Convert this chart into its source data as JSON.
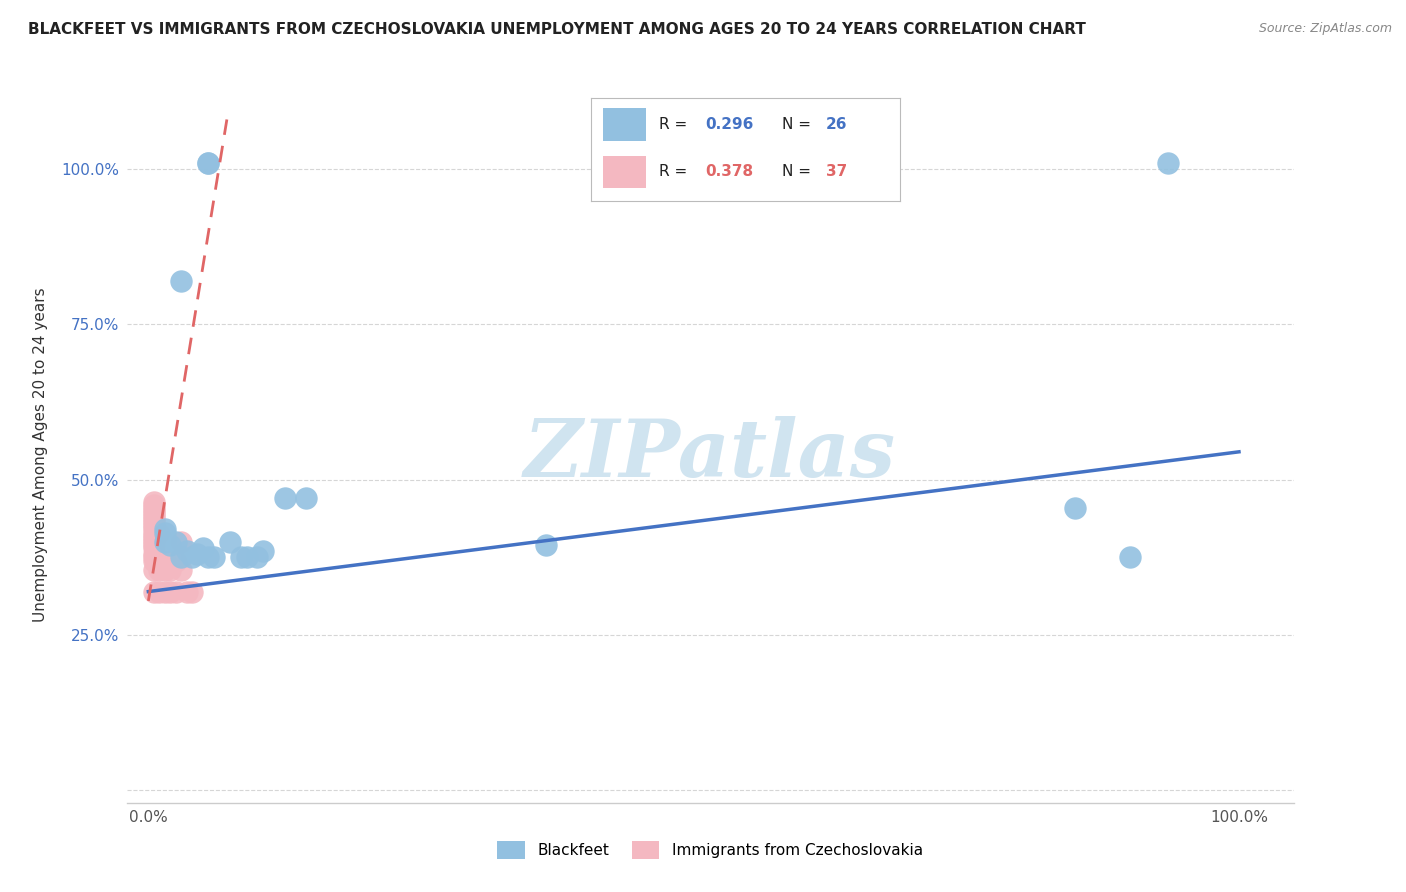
{
  "title": "BLACKFEET VS IMMIGRANTS FROM CZECHOSLOVAKIA UNEMPLOYMENT AMONG AGES 20 TO 24 YEARS CORRELATION CHART",
  "source": "Source: ZipAtlas.com",
  "ylabel": "Unemployment Among Ages 20 to 24 years",
  "blackfeet_R": 0.296,
  "blackfeet_N": 26,
  "czech_R": 0.378,
  "czech_N": 37,
  "blackfeet_color": "#92c0e0",
  "czech_color": "#f4b8c1",
  "blue_line_color": "#4472c4",
  "pink_line_color": "#e06666",
  "watermark_color": "#d0e4f0",
  "background_color": "#ffffff",
  "xlim": [
    -0.02,
    1.05
  ],
  "ylim": [
    -0.02,
    1.1
  ],
  "blackfeet_scatter": [
    [
      0.03,
      0.82
    ],
    [
      0.055,
      1.01
    ],
    [
      0.055,
      1.01
    ],
    [
      0.935,
      1.01
    ],
    [
      0.015,
      0.4
    ],
    [
      0.015,
      0.42
    ],
    [
      0.015,
      0.415
    ],
    [
      0.02,
      0.395
    ],
    [
      0.025,
      0.4
    ],
    [
      0.03,
      0.375
    ],
    [
      0.035,
      0.385
    ],
    [
      0.04,
      0.375
    ],
    [
      0.045,
      0.38
    ],
    [
      0.05,
      0.39
    ],
    [
      0.055,
      0.375
    ],
    [
      0.06,
      0.375
    ],
    [
      0.075,
      0.4
    ],
    [
      0.085,
      0.375
    ],
    [
      0.09,
      0.375
    ],
    [
      0.1,
      0.375
    ],
    [
      0.105,
      0.385
    ],
    [
      0.125,
      0.47
    ],
    [
      0.145,
      0.47
    ],
    [
      0.365,
      0.395
    ],
    [
      0.85,
      0.455
    ],
    [
      0.9,
      0.375
    ]
  ],
  "czech_scatter": [
    [
      0.005,
      0.32
    ],
    [
      0.005,
      0.355
    ],
    [
      0.005,
      0.37
    ],
    [
      0.005,
      0.375
    ],
    [
      0.005,
      0.38
    ],
    [
      0.005,
      0.39
    ],
    [
      0.005,
      0.395
    ],
    [
      0.005,
      0.4
    ],
    [
      0.005,
      0.405
    ],
    [
      0.005,
      0.41
    ],
    [
      0.005,
      0.415
    ],
    [
      0.005,
      0.42
    ],
    [
      0.005,
      0.425
    ],
    [
      0.005,
      0.43
    ],
    [
      0.005,
      0.435
    ],
    [
      0.005,
      0.44
    ],
    [
      0.005,
      0.445
    ],
    [
      0.005,
      0.45
    ],
    [
      0.005,
      0.455
    ],
    [
      0.005,
      0.46
    ],
    [
      0.005,
      0.465
    ],
    [
      0.01,
      0.32
    ],
    [
      0.01,
      0.355
    ],
    [
      0.01,
      0.365
    ],
    [
      0.01,
      0.37
    ],
    [
      0.01,
      0.415
    ],
    [
      0.015,
      0.32
    ],
    [
      0.015,
      0.355
    ],
    [
      0.015,
      0.37
    ],
    [
      0.02,
      0.32
    ],
    [
      0.02,
      0.355
    ],
    [
      0.025,
      0.32
    ],
    [
      0.025,
      0.37
    ],
    [
      0.03,
      0.355
    ],
    [
      0.03,
      0.4
    ],
    [
      0.035,
      0.32
    ],
    [
      0.04,
      0.32
    ]
  ],
  "blue_trendline_x": [
    0.0,
    1.0
  ],
  "blue_trendline_y": [
    0.32,
    0.545
  ],
  "pink_trendline_x": [
    0.0,
    0.072
  ],
  "pink_trendline_y": [
    0.305,
    1.08
  ],
  "xtick_positions": [
    0.0,
    0.25,
    0.5,
    0.75,
    1.0
  ],
  "xticklabels": [
    "0.0%",
    "",
    "",
    "",
    "100.0%"
  ],
  "ytick_positions": [
    0.0,
    0.25,
    0.5,
    0.75,
    1.0
  ],
  "yticklabels": [
    "",
    "25.0%",
    "50.0%",
    "75.0%",
    "100.0%"
  ],
  "grid_color": "#cccccc",
  "legend_label_blue": "Blackfeet",
  "legend_label_pink": "Immigrants from Czechoslovakia"
}
